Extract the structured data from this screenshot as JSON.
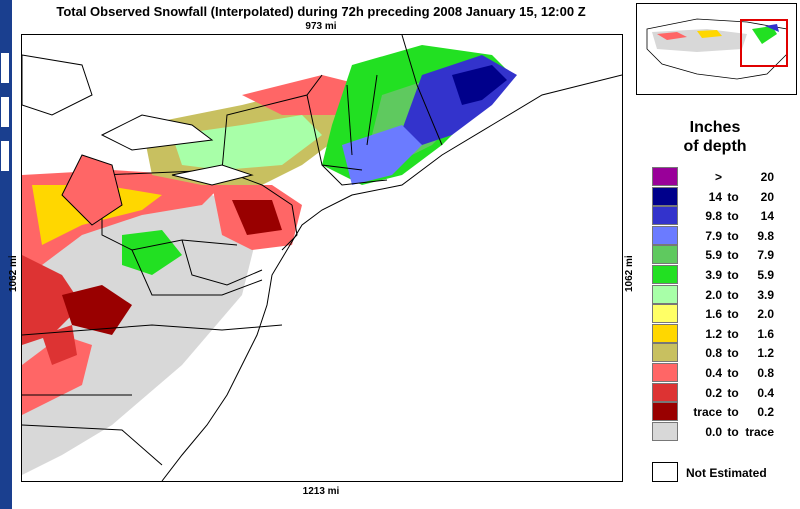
{
  "title": "Total Observed Snowfall (Interpolated) during 72h preceding 2008 January 15, 12:00 Z",
  "scale": {
    "top": "973 mi",
    "bottom": "1213 mi",
    "left": "1062 mi",
    "right": "1062 mi"
  },
  "legend": {
    "title_line1": "Inches",
    "title_line2": "of depth",
    "items": [
      {
        "from": ">",
        "to_word": "",
        "to": "20",
        "color": "#990099"
      },
      {
        "from": "14",
        "to_word": "to",
        "to": "20",
        "color": "#00008b"
      },
      {
        "from": "9.8",
        "to_word": "to",
        "to": "14",
        "color": "#3333cc"
      },
      {
        "from": "7.9",
        "to_word": "to",
        "to": "9.8",
        "color": "#6b7bff"
      },
      {
        "from": "5.9",
        "to_word": "to",
        "to": "7.9",
        "color": "#5fc95f"
      },
      {
        "from": "3.9",
        "to_word": "to",
        "to": "5.9",
        "color": "#22e022"
      },
      {
        "from": "2.0",
        "to_word": "to",
        "to": "3.9",
        "color": "#a8ffa8"
      },
      {
        "from": "1.6",
        "to_word": "to",
        "to": "2.0",
        "color": "#ffff66"
      },
      {
        "from": "1.2",
        "to_word": "to",
        "to": "1.6",
        "color": "#ffd700"
      },
      {
        "from": "0.8",
        "to_word": "to",
        "to": "1.2",
        "color": "#c8c060"
      },
      {
        "from": "0.4",
        "to_word": "to",
        "to": "0.8",
        "color": "#ff6666"
      },
      {
        "from": "0.2",
        "to_word": "to",
        "to": "0.4",
        "color": "#dd3333"
      },
      {
        "from": "trace",
        "to_word": "to",
        "to": "0.2",
        "color": "#990000"
      },
      {
        "from": "0.0",
        "to_word": "to",
        "to": "trace",
        "color": "#d8d8d8"
      }
    ],
    "not_estimated_label": "Not Estimated"
  },
  "colors": {
    "frame": "#1a3f8f",
    "inset_highlight": "#e00000",
    "no_snow": "#d8d8d8",
    "ocean": "#ffffff"
  }
}
